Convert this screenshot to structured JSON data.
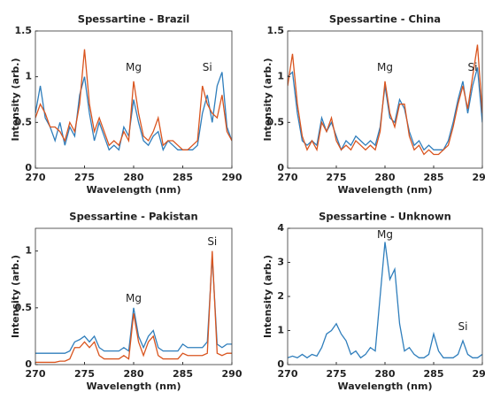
{
  "chart_data": [
    {
      "type": "line",
      "title": "Spessartine - Brazil",
      "x_label": "Wavelength (nm)",
      "y_label": "Intensity (arb.)",
      "x": [
        270,
        270.5,
        271,
        271.5,
        272,
        272.5,
        273,
        273.5,
        274,
        274.5,
        275,
        275.5,
        276,
        276.5,
        277,
        277.5,
        278,
        278.5,
        279,
        279.5,
        280,
        280.5,
        281,
        281.5,
        282,
        282.5,
        283,
        283.5,
        284,
        284.5,
        285,
        285.5,
        286,
        286.5,
        287,
        287.5,
        288,
        288.5,
        289,
        289.5,
        290
      ],
      "series": [
        {
          "color": "#2f7ebc",
          "values": [
            0.6,
            0.9,
            0.55,
            0.45,
            0.3,
            0.5,
            0.25,
            0.45,
            0.35,
            0.8,
            1.0,
            0.6,
            0.3,
            0.5,
            0.35,
            0.2,
            0.25,
            0.2,
            0.45,
            0.35,
            0.75,
            0.5,
            0.3,
            0.25,
            0.35,
            0.4,
            0.2,
            0.3,
            0.25,
            0.2,
            0.2,
            0.2,
            0.2,
            0.25,
            0.6,
            0.8,
            0.5,
            0.9,
            1.05,
            0.45,
            0.3
          ]
        },
        {
          "color": "#d9541e",
          "values": [
            0.55,
            0.7,
            0.6,
            0.45,
            0.45,
            0.4,
            0.3,
            0.5,
            0.4,
            0.7,
            1.3,
            0.7,
            0.4,
            0.55,
            0.4,
            0.25,
            0.3,
            0.25,
            0.4,
            0.3,
            0.95,
            0.6,
            0.35,
            0.3,
            0.4,
            0.55,
            0.25,
            0.3,
            0.3,
            0.25,
            0.2,
            0.2,
            0.25,
            0.3,
            0.9,
            0.7,
            0.6,
            0.55,
            0.8,
            0.4,
            0.3
          ]
        }
      ],
      "xlim": [
        270,
        290
      ],
      "xticks": [
        270,
        275,
        280,
        285,
        290
      ],
      "ylim": [
        0,
        1.5
      ],
      "yticks": [
        0,
        0.5,
        1,
        1.5
      ],
      "annotations": [
        {
          "text": "Mg",
          "x": 280,
          "y": 1.1
        },
        {
          "text": "Si",
          "x": 287.5,
          "y": 1.1
        }
      ]
    },
    {
      "type": "line",
      "title": "Spessartine - China",
      "x_label": "Wavelength (nm)",
      "y_label": "Intensity (arb.)",
      "x": [
        270,
        270.5,
        271,
        271.5,
        272,
        272.5,
        273,
        273.5,
        274,
        274.5,
        275,
        275.5,
        276,
        276.5,
        277,
        277.5,
        278,
        278.5,
        279,
        279.5,
        280,
        280.5,
        281,
        281.5,
        282,
        282.5,
        283,
        283.5,
        284,
        284.5,
        285,
        285.5,
        286,
        286.5,
        287,
        287.5,
        288,
        288.5,
        289,
        289.5,
        290
      ],
      "series": [
        {
          "color": "#2f7ebc",
          "values": [
            1.0,
            1.05,
            0.6,
            0.3,
            0.25,
            0.3,
            0.25,
            0.55,
            0.4,
            0.5,
            0.35,
            0.2,
            0.3,
            0.25,
            0.35,
            0.3,
            0.25,
            0.3,
            0.25,
            0.45,
            0.9,
            0.55,
            0.5,
            0.75,
            0.65,
            0.4,
            0.25,
            0.3,
            0.2,
            0.25,
            0.2,
            0.2,
            0.2,
            0.3,
            0.5,
            0.75,
            0.95,
            0.6,
            0.9,
            1.1,
            0.5
          ]
        },
        {
          "color": "#d9541e",
          "values": [
            0.9,
            1.25,
            0.7,
            0.35,
            0.2,
            0.3,
            0.2,
            0.5,
            0.4,
            0.55,
            0.3,
            0.2,
            0.25,
            0.2,
            0.3,
            0.25,
            0.2,
            0.25,
            0.2,
            0.4,
            0.95,
            0.6,
            0.45,
            0.7,
            0.7,
            0.35,
            0.2,
            0.25,
            0.15,
            0.2,
            0.15,
            0.15,
            0.2,
            0.25,
            0.45,
            0.7,
            0.9,
            0.65,
            1.0,
            1.35,
            0.6
          ]
        }
      ],
      "xlim": [
        270,
        290
      ],
      "xticks": [
        270,
        275,
        280,
        285,
        290
      ],
      "ylim": [
        0,
        1.5
      ],
      "yticks": [
        0,
        0.5,
        1,
        1.5
      ],
      "annotations": [
        {
          "text": "Mg",
          "x": 280,
          "y": 1.1
        },
        {
          "text": "Si",
          "x": 289,
          "y": 1.1
        }
      ]
    },
    {
      "type": "line",
      "title": "Spessartine - Pakistan",
      "x_label": "Wavelength (nm)",
      "y_label": "Intensity (arb.)",
      "x": [
        270,
        270.5,
        271,
        271.5,
        272,
        272.5,
        273,
        273.5,
        274,
        274.5,
        275,
        275.5,
        276,
        276.5,
        277,
        277.5,
        278,
        278.5,
        279,
        279.5,
        280,
        280.5,
        281,
        281.5,
        282,
        282.5,
        283,
        283.5,
        284,
        284.5,
        285,
        285.5,
        286,
        286.5,
        287,
        287.5,
        288,
        288.5,
        289,
        289.5,
        290
      ],
      "series": [
        {
          "color": "#2f7ebc",
          "values": [
            0.1,
            0.1,
            0.1,
            0.1,
            0.1,
            0.1,
            0.1,
            0.12,
            0.2,
            0.22,
            0.25,
            0.2,
            0.25,
            0.15,
            0.12,
            0.12,
            0.12,
            0.12,
            0.15,
            0.12,
            0.5,
            0.25,
            0.15,
            0.25,
            0.3,
            0.15,
            0.12,
            0.12,
            0.12,
            0.12,
            0.18,
            0.15,
            0.15,
            0.15,
            0.15,
            0.2,
            0.95,
            0.18,
            0.15,
            0.18,
            0.18
          ]
        },
        {
          "color": "#d9541e",
          "values": [
            0.02,
            0.02,
            0.02,
            0.02,
            0.02,
            0.03,
            0.03,
            0.05,
            0.15,
            0.15,
            0.2,
            0.15,
            0.2,
            0.08,
            0.05,
            0.05,
            0.05,
            0.05,
            0.08,
            0.05,
            0.45,
            0.2,
            0.08,
            0.2,
            0.25,
            0.08,
            0.05,
            0.05,
            0.05,
            0.05,
            0.1,
            0.08,
            0.08,
            0.08,
            0.08,
            0.1,
            1.0,
            0.1,
            0.08,
            0.1,
            0.1
          ]
        }
      ],
      "xlim": [
        270,
        290
      ],
      "xticks": [
        270,
        275,
        280,
        285,
        290
      ],
      "ylim": [
        0,
        1.2
      ],
      "yticks": [
        0,
        0.5,
        1
      ],
      "annotations": [
        {
          "text": "Mg",
          "x": 280,
          "y": 0.58
        },
        {
          "text": "Si",
          "x": 288,
          "y": 1.08
        }
      ]
    },
    {
      "type": "line",
      "title": "Spessartine - Unknown",
      "x_label": "Wavelength (nm)",
      "y_label": "Intensity (arb.)",
      "x": [
        270,
        270.5,
        271,
        271.5,
        272,
        272.5,
        273,
        273.5,
        274,
        274.5,
        275,
        275.5,
        276,
        276.5,
        277,
        277.5,
        278,
        278.5,
        279,
        279.5,
        280,
        280.5,
        281,
        281.5,
        282,
        282.5,
        283,
        283.5,
        284,
        284.5,
        285,
        285.5,
        286,
        286.5,
        287,
        287.5,
        288,
        288.5,
        289,
        289.5,
        290
      ],
      "series": [
        {
          "color": "#2f7ebc",
          "values": [
            0.2,
            0.25,
            0.2,
            0.3,
            0.2,
            0.3,
            0.25,
            0.5,
            0.9,
            1.0,
            1.2,
            0.9,
            0.7,
            0.3,
            0.4,
            0.2,
            0.3,
            0.5,
            0.4,
            2.0,
            3.6,
            2.5,
            2.8,
            1.2,
            0.4,
            0.5,
            0.3,
            0.2,
            0.2,
            0.3,
            0.9,
            0.4,
            0.2,
            0.2,
            0.2,
            0.3,
            0.7,
            0.3,
            0.2,
            0.2,
            0.3
          ]
        }
      ],
      "xlim": [
        270,
        290
      ],
      "xticks": [
        270,
        275,
        280,
        285,
        290
      ],
      "ylim": [
        0,
        4
      ],
      "yticks": [
        0,
        1,
        2,
        3,
        4
      ],
      "annotations": [
        {
          "text": "Mg",
          "x": 280,
          "y": 3.8
        },
        {
          "text": "Si",
          "x": 288,
          "y": 1.1
        }
      ]
    }
  ]
}
